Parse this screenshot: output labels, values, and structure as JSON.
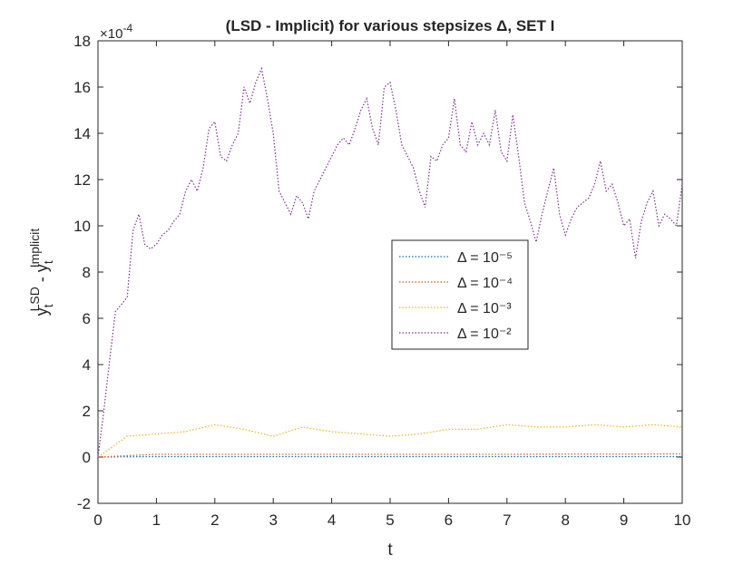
{
  "chart_data": {
    "type": "line",
    "title": "(LSD - Implicit) for various stepsizes Δ, SET I",
    "xlabel": "t",
    "ylabel": [
      {
        "text": "y"
      },
      {
        "text": "t",
        "sub": true
      },
      {
        "text": "LSD",
        "sup": true
      },
      {
        "text": " - y"
      },
      {
        "text": "t",
        "sub": true
      },
      {
        "text": "Implicit",
        "sup": true
      }
    ],
    "scale_label": {
      "base": "×10",
      "exponent": "-4"
    },
    "xlim": [
      0,
      10
    ],
    "ylim": [
      -2,
      18
    ],
    "xticks": [
      0,
      1,
      2,
      3,
      4,
      5,
      6,
      7,
      8,
      9,
      10
    ],
    "yticks": [
      -2,
      0,
      2,
      4,
      6,
      8,
      10,
      12,
      14,
      16,
      18
    ],
    "grid": false,
    "legend_position": "center-right",
    "series": [
      {
        "name": "Δ = 10⁻⁵",
        "color": "#0072BD",
        "x": [
          0,
          1,
          2,
          3,
          4,
          5,
          6,
          7,
          8,
          9,
          10
        ],
        "values": [
          0,
          0.02,
          0.02,
          0.02,
          0.02,
          0.02,
          0.02,
          0.02,
          0.02,
          0.02,
          0.02
        ]
      },
      {
        "name": "Δ = 10⁻⁴",
        "color": "#D95319",
        "x": [
          0,
          1,
          2,
          3,
          4,
          5,
          6,
          7,
          8,
          9,
          10
        ],
        "values": [
          0,
          0.12,
          0.12,
          0.12,
          0.12,
          0.12,
          0.12,
          0.12,
          0.13,
          0.13,
          0.14
        ]
      },
      {
        "name": "Δ = 10⁻³",
        "color": "#EDB120",
        "x": [
          0,
          0.5,
          1,
          1.5,
          2,
          2.5,
          3,
          3.5,
          4,
          4.5,
          5,
          5.5,
          6,
          6.5,
          7,
          7.5,
          8,
          8.5,
          9,
          9.5,
          10
        ],
        "values": [
          0,
          0.9,
          1.0,
          1.1,
          1.4,
          1.2,
          0.9,
          1.3,
          1.1,
          1.0,
          0.9,
          1.0,
          1.2,
          1.2,
          1.4,
          1.3,
          1.3,
          1.4,
          1.3,
          1.4,
          1.3
        ]
      },
      {
        "name": "Δ = 10⁻²",
        "color": "#7E2F8E",
        "x": [
          0,
          0.1,
          0.2,
          0.3,
          0.4,
          0.5,
          0.6,
          0.7,
          0.8,
          0.9,
          1,
          1.1,
          1.2,
          1.3,
          1.4,
          1.5,
          1.6,
          1.7,
          1.8,
          1.9,
          2,
          2.1,
          2.2,
          2.3,
          2.4,
          2.5,
          2.6,
          2.7,
          2.8,
          2.9,
          3,
          3.1,
          3.2,
          3.3,
          3.4,
          3.5,
          3.6,
          3.7,
          3.8,
          3.9,
          4,
          4.1,
          4.2,
          4.3,
          4.4,
          4.5,
          4.6,
          4.7,
          4.8,
          4.9,
          5,
          5.1,
          5.2,
          5.3,
          5.4,
          5.5,
          5.6,
          5.7,
          5.8,
          5.9,
          6,
          6.1,
          6.2,
          6.3,
          6.4,
          6.5,
          6.6,
          6.7,
          6.8,
          6.9,
          7,
          7.1,
          7.2,
          7.3,
          7.4,
          7.5,
          7.6,
          7.7,
          7.8,
          7.9,
          8,
          8.1,
          8.2,
          8.3,
          8.4,
          8.5,
          8.6,
          8.7,
          8.8,
          8.9,
          9,
          9.1,
          9.2,
          9.3,
          9.4,
          9.5,
          9.6,
          9.7,
          9.8,
          9.9,
          10
        ],
        "values": [
          0,
          2.0,
          4.2,
          6.3,
          6.6,
          6.9,
          9.8,
          10.5,
          9.2,
          9.0,
          9.2,
          9.6,
          9.8,
          10.2,
          10.5,
          11.5,
          12.0,
          11.5,
          12.5,
          14.2,
          14.5,
          13.0,
          12.8,
          13.5,
          14.0,
          16.0,
          15.3,
          16.2,
          16.8,
          15.5,
          14.0,
          11.5,
          11.0,
          10.5,
          11.3,
          11.0,
          10.3,
          11.5,
          12.0,
          12.5,
          13.0,
          13.5,
          13.8,
          13.5,
          14.2,
          15.0,
          15.5,
          14.2,
          13.5,
          16.0,
          16.2,
          15.0,
          13.5,
          13.0,
          12.5,
          11.5,
          10.8,
          13.0,
          12.8,
          13.5,
          13.8,
          15.5,
          13.5,
          13.2,
          14.5,
          13.5,
          14.0,
          13.5,
          15.0,
          13.2,
          12.8,
          14.8,
          13.0,
          11.0,
          10.2,
          9.3,
          10.5,
          11.5,
          12.5,
          10.5,
          9.6,
          10.3,
          10.8,
          11.0,
          11.2,
          11.8,
          12.8,
          11.5,
          11.8,
          11.0,
          10.0,
          10.3,
          8.6,
          10.2,
          11.0,
          11.5,
          10.0,
          10.5,
          10.3,
          10.0,
          11.8
        ]
      }
    ]
  }
}
